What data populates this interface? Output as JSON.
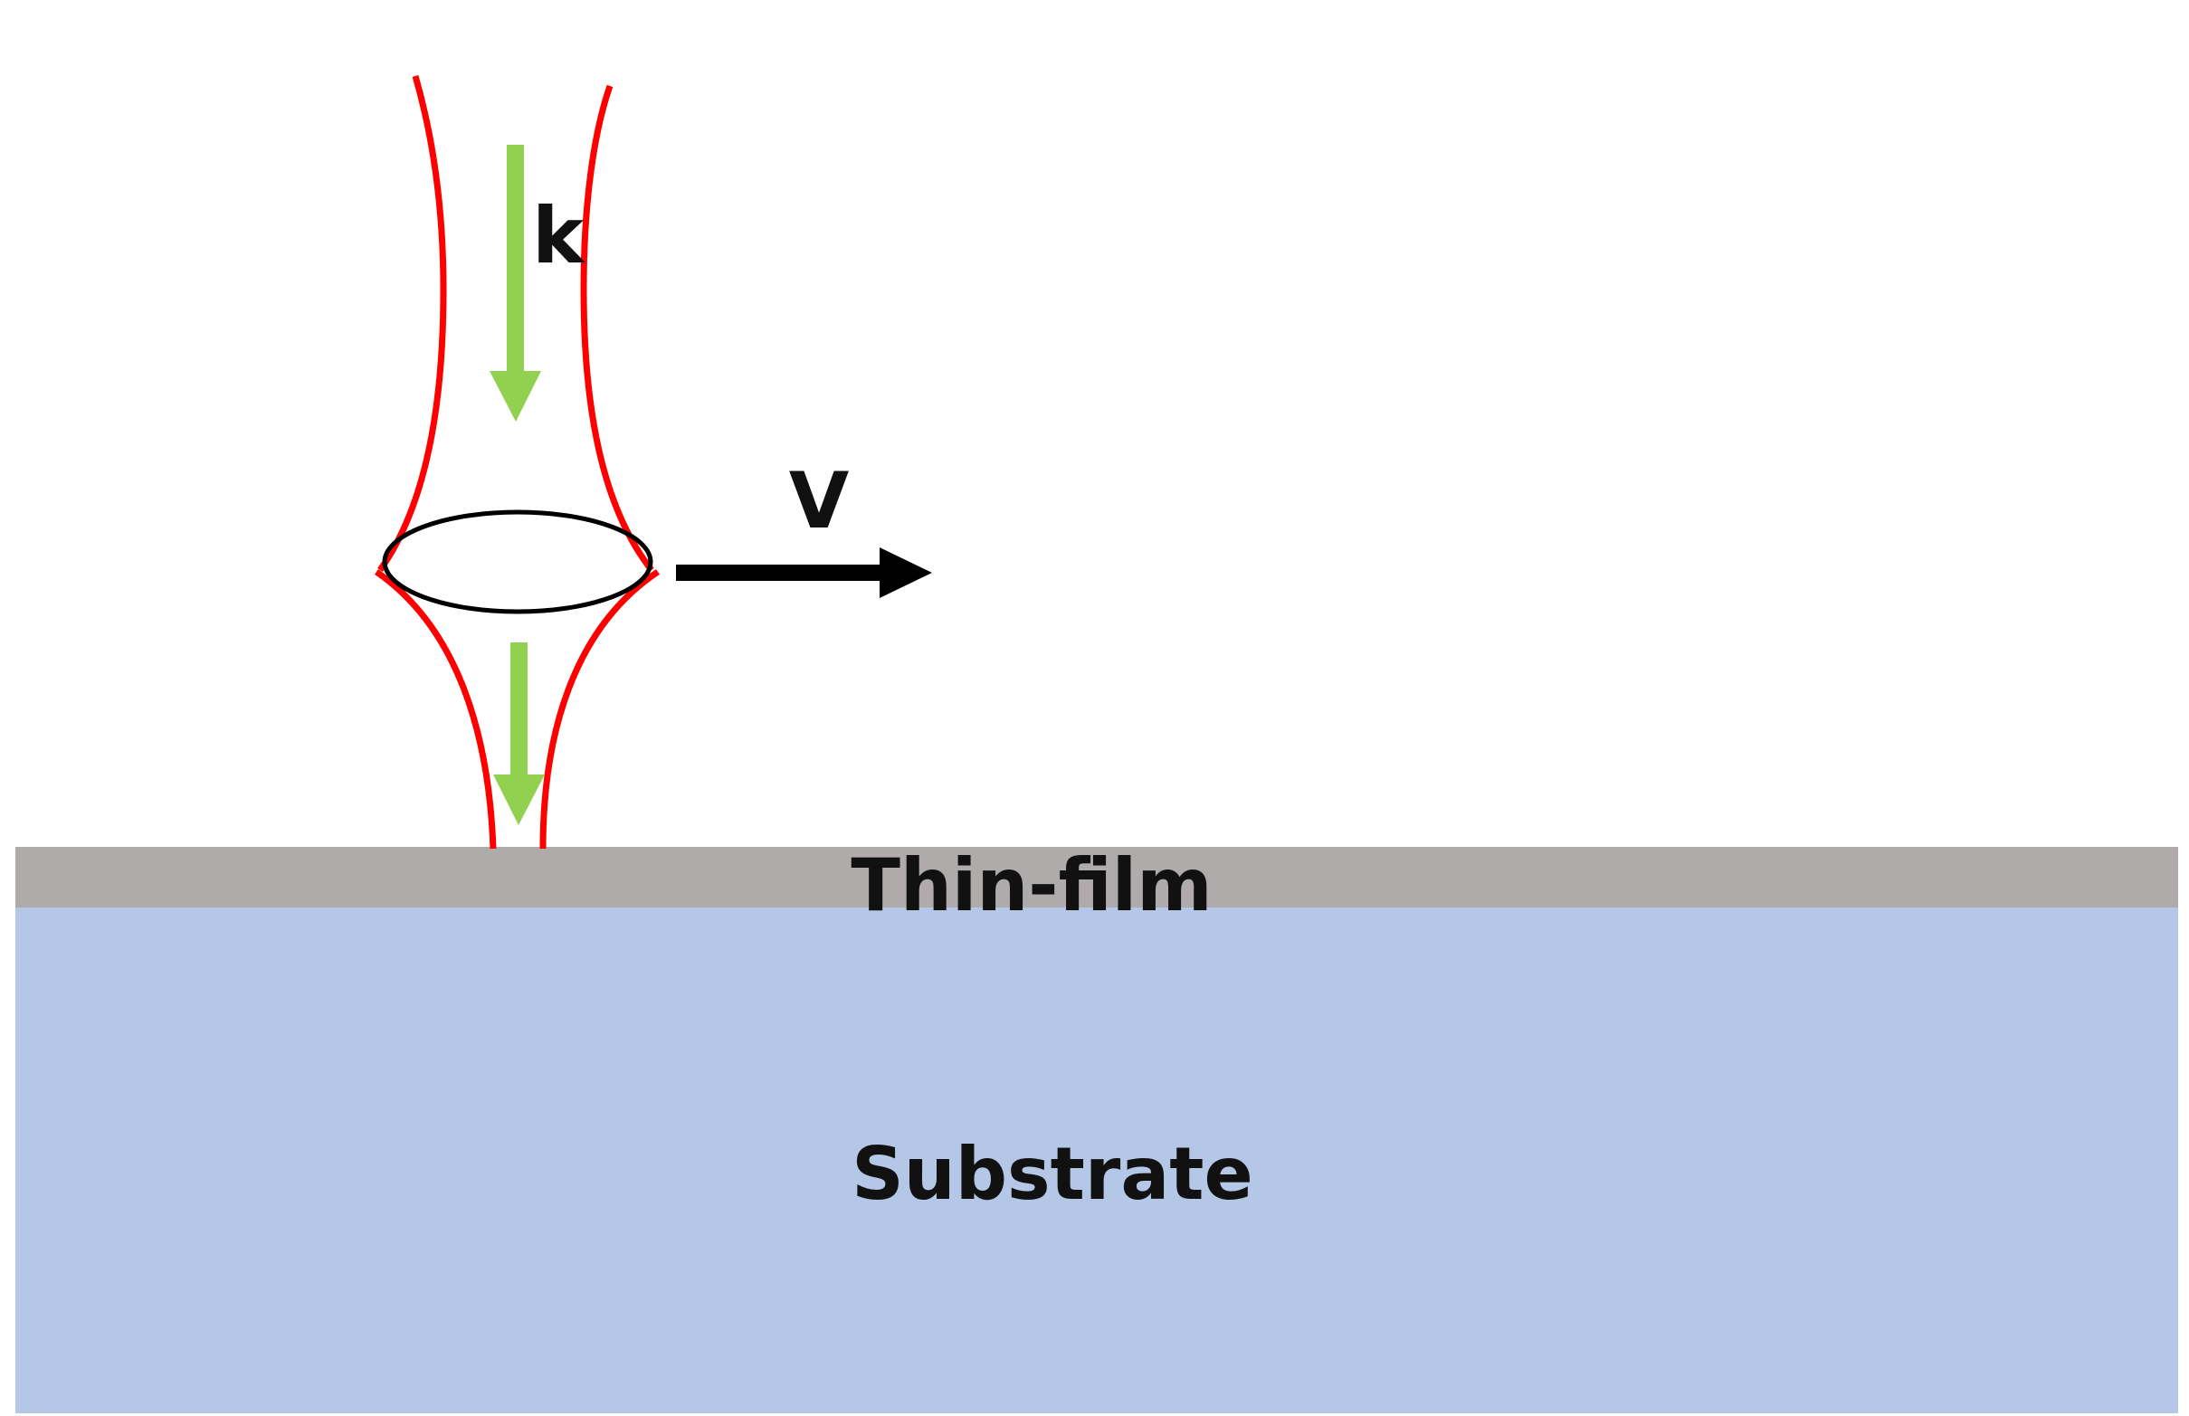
{
  "labels": {
    "wave_vector": "k",
    "velocity": "V",
    "thin_film": "Thin-film",
    "substrate": "Substrate"
  },
  "colors": {
    "beam": "#ff0000",
    "k_arrow": "#92d050",
    "v_arrow": "#000000",
    "thin_film": "#afabab",
    "substrate": "#b4c7e7",
    "focal_ring": "#000000",
    "background": "#ffffff"
  }
}
